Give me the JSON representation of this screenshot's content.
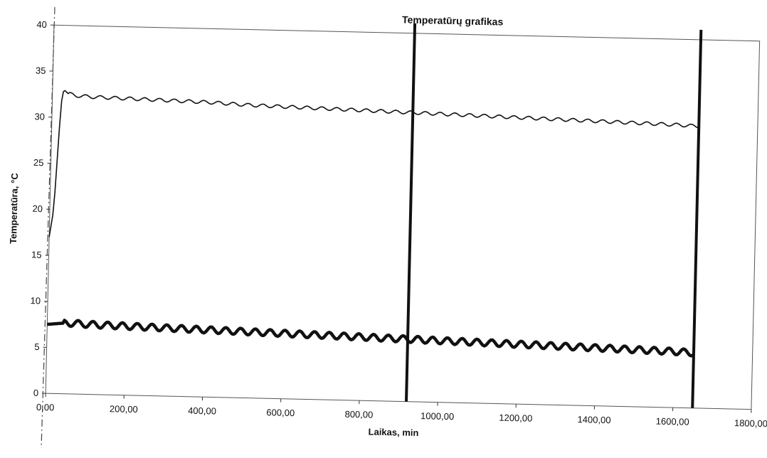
{
  "chart_data": {
    "type": "line",
    "title": "Temperatūrų grafikas",
    "xlabel": "Laikas, min",
    "ylabel": "Temperatūra, °C",
    "xlim": [
      0,
      1800
    ],
    "ylim": [
      0,
      40
    ],
    "x_ticks": [
      "0,00",
      "200,00",
      "400,00",
      "600,00",
      "800,00",
      "1000,00",
      "1200,00",
      "1400,00",
      "1600,00",
      "1800,00"
    ],
    "y_ticks": [
      "0",
      "5",
      "10",
      "15",
      "20",
      "25",
      "30",
      "35",
      "40"
    ],
    "grid": false,
    "legend": "none",
    "series": [
      {
        "color": "#111111",
        "x": [
          0,
          10,
          20,
          25,
          30,
          40,
          60,
          100,
          200,
          300,
          400,
          500,
          600,
          700,
          800,
          900,
          1000,
          1100,
          1200,
          1300,
          1400,
          1500,
          1600,
          1650
        ],
        "values": [
          17,
          20,
          29,
          32.5,
          33,
          32.6,
          32.4,
          32.3,
          32.2,
          32.1,
          32.0,
          31.8,
          31.7,
          31.6,
          31.5,
          31.4,
          31.3,
          31.2,
          31.1,
          31.0,
          30.9,
          30.8,
          30.7,
          30.6
        ]
      },
      {
        "color": "#111111",
        "x": [
          0,
          50,
          100,
          200,
          300,
          400,
          500,
          600,
          700,
          800,
          900,
          1000,
          1100,
          1200,
          1300,
          1400,
          1500,
          1600,
          1650
        ],
        "values": [
          7.5,
          7.7,
          7.6,
          7.5,
          7.4,
          7.3,
          7.2,
          7.1,
          7.0,
          6.9,
          6.8,
          6.7,
          6.6,
          6.5,
          6.4,
          6.3,
          6.2,
          6.1,
          6.0
        ]
      }
    ],
    "vertical_markers": [
      920,
      1650
    ]
  }
}
